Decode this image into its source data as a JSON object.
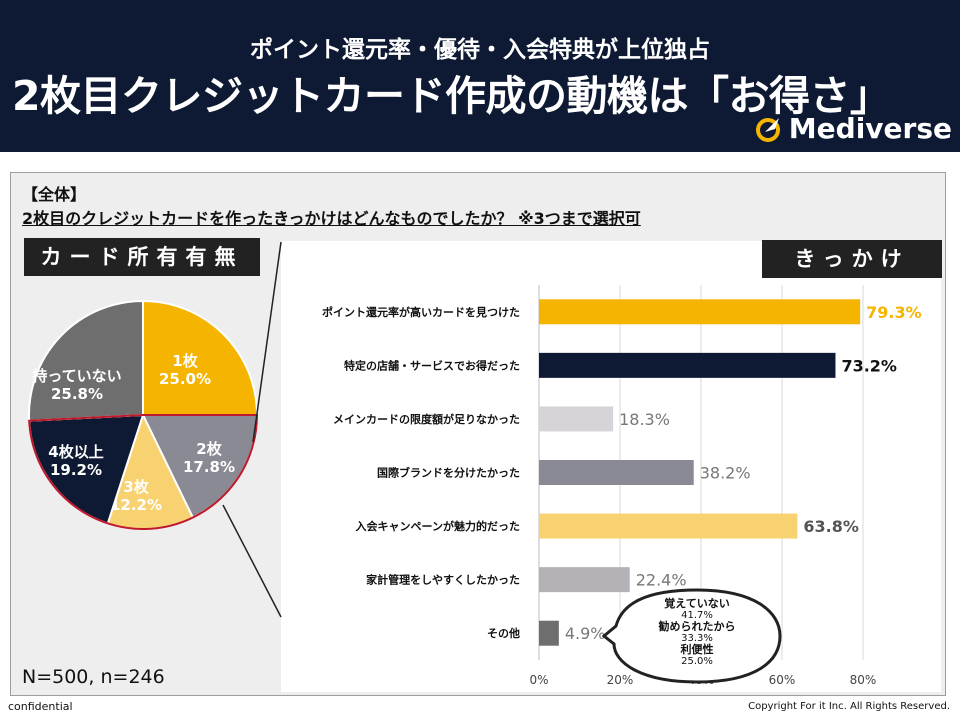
{
  "header": {
    "subtitle": "ポイント還元率・優待・入会特典が上位独占",
    "title": "2枚目クレジットカード作成の動機は「お得さ」",
    "logo_text": "Mediverse"
  },
  "section_tag": "【全体】",
  "question": "2枚目のクレジットカードを作ったきっかけはどんなものでしたか？ ※3つまで選択可",
  "pie_box_label": "カード所有有無",
  "bar_box_label": "きっかけ",
  "sample_size": "N=500, n=246",
  "footer": {
    "confidential": "confidential",
    "copyright": "Copyright For it Inc. All Rights Reserved."
  },
  "colors": {
    "header_bg": "#0e1a33",
    "gold": "#f5b400",
    "navy": "#0e1a33",
    "gray": "#8a8a94",
    "light_gold": "#f8d270",
    "light_gray": "#d6d4d8",
    "mid_gray": "#b4b2b6",
    "dark_gray": "#6e6e6e"
  },
  "chart_data": [
    {
      "type": "pie",
      "title": "カード所有有無",
      "slices": [
        {
          "label": "1枚",
          "value": 25.0,
          "value_label": "25.0%",
          "color": "#f5b400"
        },
        {
          "label": "2枚",
          "value": 17.8,
          "value_label": "17.8%",
          "color": "#8a8a94"
        },
        {
          "label": "3枚",
          "value": 12.2,
          "value_label": "12.2%",
          "color": "#f8d270"
        },
        {
          "label": "4枚以上",
          "value": 19.2,
          "value_label": "19.2%",
          "color": "#0e1a33"
        },
        {
          "label": "持っていない",
          "value": 25.8,
          "value_label": "25.8%",
          "color": "#6e6e6e"
        }
      ]
    },
    {
      "type": "bar",
      "orientation": "horizontal",
      "title": "きっかけ",
      "categories": [
        "ポイント還元率が高いカードを見つけた",
        "特定の店舗・サービスでお得だった",
        "メインカードの限度額が足りなかった",
        "国際ブランドを分けたかった",
        "入会キャンペーンが魅力的だった",
        "家計管理をしやすくしたかった",
        "その他"
      ],
      "values": [
        79.3,
        73.2,
        18.3,
        38.2,
        63.8,
        22.4,
        4.9
      ],
      "value_labels": [
        "79.3%",
        "73.2%",
        "18.3%",
        "38.2%",
        "63.8%",
        "22.4%",
        "4.9%"
      ],
      "bar_colors": [
        "#f5b400",
        "#0e1a33",
        "#d6d4d8",
        "#8a8a94",
        "#f8d270",
        "#b4b2b6",
        "#6e6e6e"
      ],
      "label_colors": [
        "#f5b400",
        "#111111",
        "#777777",
        "#777777",
        "#555555",
        "#777777",
        "#777777"
      ],
      "label_bold": [
        true,
        true,
        false,
        false,
        true,
        false,
        false
      ],
      "xlim": [
        0,
        80
      ],
      "xticks": [
        "0%",
        "20%",
        "40%",
        "60%",
        "80%"
      ],
      "grid": true
    }
  ],
  "callout": {
    "items": [
      {
        "label": "覚えていない",
        "value": "41.7%"
      },
      {
        "label": "勧められたから",
        "value": "33.3%"
      },
      {
        "label": "利便性",
        "value": "25.0%"
      }
    ]
  }
}
